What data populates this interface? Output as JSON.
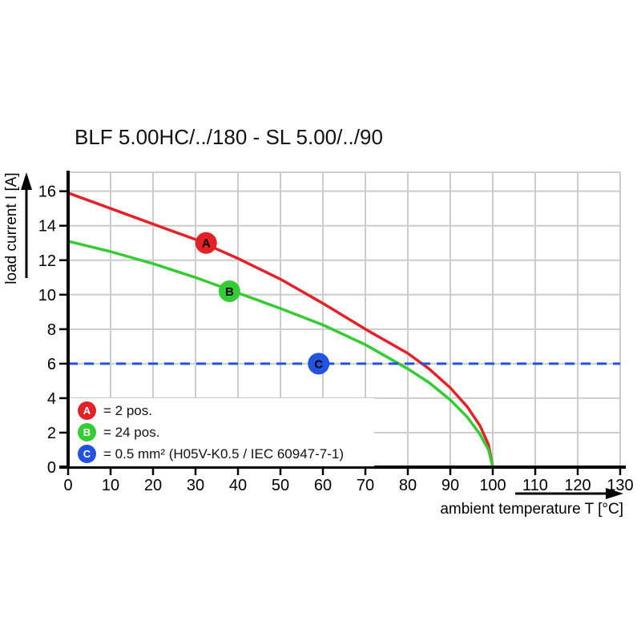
{
  "title": "BLF 5.00HC/../180 - SL 5.00/../90",
  "chart_data": {
    "type": "line",
    "title": "BLF 5.00HC/../180 - SL 5.00/../90",
    "xlabel": "ambient temperature T [°C]",
    "ylabel": "load current I [A]",
    "xlim": [
      0,
      130
    ],
    "ylim": [
      0,
      17.1
    ],
    "xticks": [
      0,
      10,
      20,
      30,
      40,
      50,
      60,
      70,
      80,
      90,
      100,
      110,
      120,
      130
    ],
    "yticks": [
      0,
      2,
      4,
      6,
      8,
      10,
      12,
      14,
      16
    ],
    "grid": true,
    "grid_color": "#cccccc",
    "axis_color": "#000000",
    "series": [
      {
        "name": "A",
        "label": "2 pos.",
        "color": "#e32228",
        "style": "solid",
        "points": [
          [
            0,
            15.9
          ],
          [
            10,
            15.0
          ],
          [
            20,
            14.1
          ],
          [
            30,
            13.2
          ],
          [
            40,
            12.1
          ],
          [
            50,
            10.9
          ],
          [
            60,
            9.5
          ],
          [
            70,
            8.0
          ],
          [
            80,
            6.6
          ],
          [
            85,
            5.7
          ],
          [
            90,
            4.6
          ],
          [
            94,
            3.5
          ],
          [
            97,
            2.4
          ],
          [
            99,
            1.3
          ],
          [
            100,
            0
          ]
        ]
      },
      {
        "name": "B",
        "label": "24 pos.",
        "color": "#33cc33",
        "style": "solid",
        "points": [
          [
            0,
            13.1
          ],
          [
            10,
            12.5
          ],
          [
            20,
            11.8
          ],
          [
            30,
            11.0
          ],
          [
            40,
            10.1
          ],
          [
            50,
            9.2
          ],
          [
            60,
            8.25
          ],
          [
            70,
            7.1
          ],
          [
            80,
            5.7
          ],
          [
            85,
            4.9
          ],
          [
            90,
            3.9
          ],
          [
            94,
            2.9
          ],
          [
            97,
            1.9
          ],
          [
            99,
            1.0
          ],
          [
            100,
            0
          ]
        ]
      },
      {
        "name": "C",
        "label": "0.5 mm² (H05V-K0.5 / IEC 60947-7-1)",
        "color": "#2153e0",
        "style": "dashed",
        "points": [
          [
            0,
            6
          ],
          [
            130,
            6
          ]
        ]
      }
    ],
    "markers": [
      {
        "label": "A",
        "x": 32.5,
        "y": 13,
        "color": "#e32228"
      },
      {
        "label": "B",
        "x": 38,
        "y": 10.2,
        "color": "#33cc33"
      },
      {
        "label": "C",
        "x": 59,
        "y": 6,
        "color": "#2153e0"
      }
    ],
    "legend": {
      "position": "bottom-left",
      "items": [
        {
          "symbol": "A",
          "color": "#e32228",
          "text": "= 2 pos."
        },
        {
          "symbol": "B",
          "color": "#33cc33",
          "text": "= 24 pos."
        },
        {
          "symbol": "C",
          "color": "#2153e0",
          "text": "= 0.5 mm² (H05V-K0.5 / IEC 60947-7-1)"
        }
      ]
    }
  }
}
